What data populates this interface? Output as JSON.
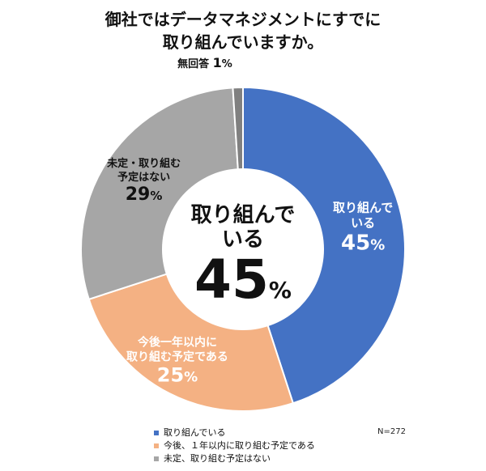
{
  "title_line1": "御社ではデータマネジメントにすでに",
  "title_line2": "取り組んでいますか。",
  "sample_size": "N=272",
  "center": {
    "line1": "取り組んで",
    "line2": "いる",
    "value": "45",
    "unit": "%"
  },
  "chart_data": {
    "type": "pie",
    "subtype": "donut",
    "categories": [
      "取り組んでいる",
      "今後、１年以内に取り組む予定である",
      "未定、取り組む予定はない",
      "無回答"
    ],
    "values": [
      45,
      25,
      29,
      1
    ],
    "unit": "%",
    "colors": [
      "#4472C4",
      "#F4B183",
      "#A6A6A6",
      "#808080"
    ],
    "slice_labels": [
      {
        "lines": [
          "取り組んで",
          "いる"
        ],
        "value": "45",
        "unit": "%",
        "color": "#ffffff"
      },
      {
        "lines": [
          "今後一年以内に",
          "取り組む予定である"
        ],
        "value": "25",
        "unit": "%",
        "color": "#ffffff"
      },
      {
        "lines": [
          "未定・取り組む",
          "予定はない"
        ],
        "value": "29",
        "unit": "%",
        "color": "#111111"
      },
      {
        "lines": [
          "無回答"
        ],
        "value": "1",
        "unit": "%",
        "color": "#111111"
      }
    ],
    "legend": [
      "取り組んでいる",
      "今後、１年以内に取り組む予定である",
      "未定、取り組む予定はない"
    ],
    "legend_position": "bottom"
  }
}
